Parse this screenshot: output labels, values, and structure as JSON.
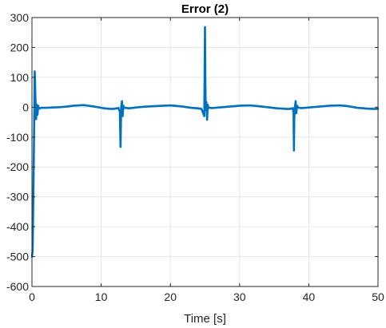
{
  "chart_data": {
    "type": "line",
    "title": "Error (2)",
    "xlabel": "Time [s]",
    "ylabel": "",
    "xlim": [
      0,
      50
    ],
    "ylim": [
      -600,
      300
    ],
    "xticks": [
      0,
      10,
      20,
      30,
      40,
      50
    ],
    "yticks": [
      300,
      200,
      100,
      0,
      -100,
      -200,
      -300,
      -400,
      -500,
      -600
    ],
    "grid": true,
    "series": [
      {
        "color": "#0072BD",
        "x": [
          0,
          0.1,
          0.2,
          0.3,
          0.4,
          0.5,
          0.6,
          0.7,
          0.8,
          0.9,
          1.0,
          1.2,
          1.5,
          2.0,
          3.0,
          4.0,
          5.0,
          6.0,
          7.5,
          9.0,
          10.5,
          11.5,
          12.0,
          12.5,
          12.7,
          12.8,
          12.85,
          12.9,
          13.0,
          13.1,
          13.2,
          13.3,
          13.5,
          14.0,
          15.0,
          16.5,
          18.0,
          20.0,
          21.5,
          23.0,
          24.0,
          24.5,
          24.9,
          25.0,
          25.05,
          25.1,
          25.2,
          25.3,
          25.4,
          25.5,
          25.7,
          26.0,
          27.0,
          28.5,
          30.0,
          31.5,
          32.5,
          34.0,
          35.5,
          37.0,
          37.5,
          37.7,
          37.8,
          37.85,
          37.9,
          38.0,
          38.1,
          38.2,
          38.3,
          38.5,
          39.0,
          40.0,
          41.5,
          43.0,
          44.5,
          45.5,
          47.0,
          48.5,
          49.5,
          50.0
        ],
        "y": [
          -500,
          -480,
          -300,
          -100,
          120,
          30,
          -40,
          8,
          -25,
          5,
          -5,
          -3,
          -2,
          -2,
          -1,
          0,
          2,
          5,
          7,
          2,
          -4,
          -6,
          -5,
          -3,
          -15,
          -133,
          -50,
          2,
          20,
          -30,
          5,
          -3,
          -2,
          -4,
          -1,
          2,
          4,
          6,
          3,
          -2,
          -4,
          -6,
          -30,
          268,
          100,
          -10,
          17,
          -42,
          8,
          -3,
          -2,
          -3,
          -1,
          2,
          5,
          6,
          4,
          0,
          -4,
          -6,
          -5,
          -3,
          -20,
          -145,
          -40,
          0,
          20,
          -20,
          5,
          -2,
          -3,
          -1,
          2,
          5,
          6,
          4,
          -2,
          -5,
          -6,
          -5
        ]
      }
    ]
  }
}
